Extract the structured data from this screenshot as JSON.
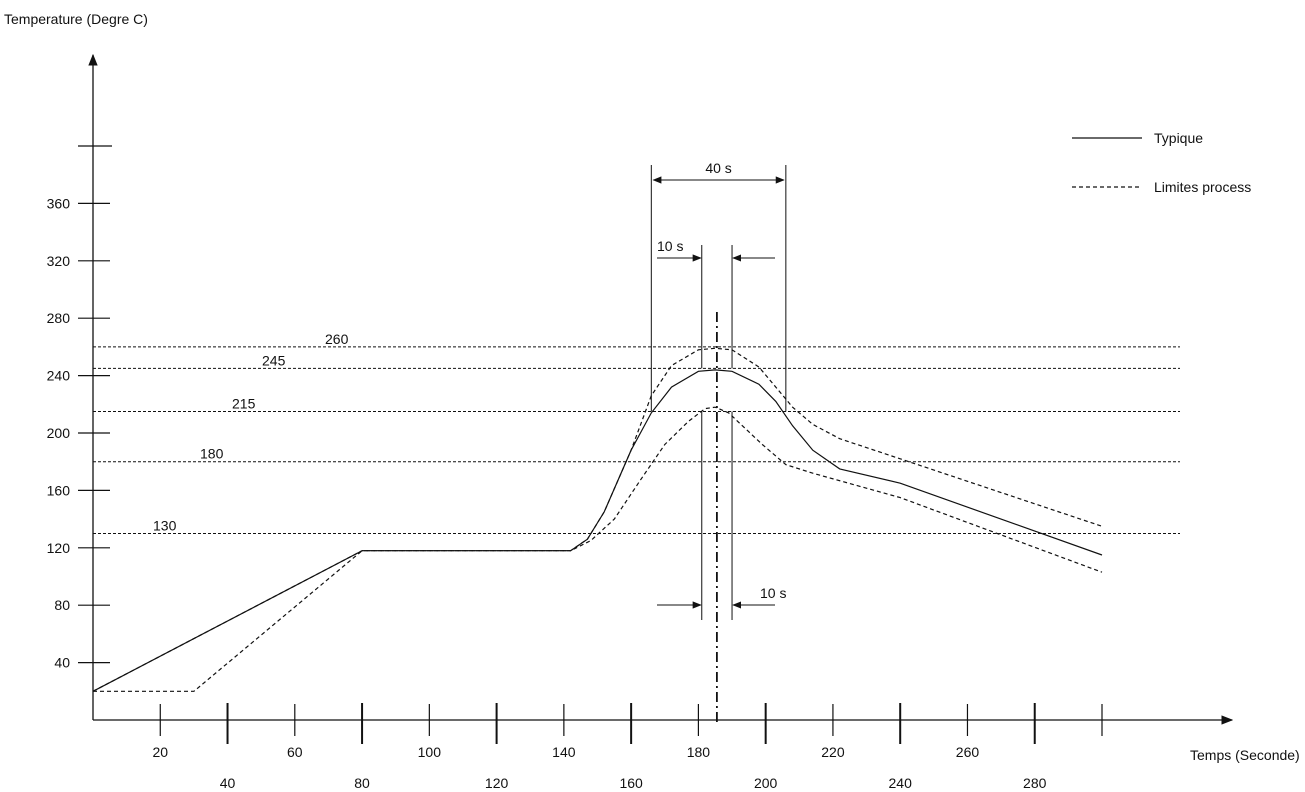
{
  "chart_data": {
    "type": "line",
    "ylabel": "Temperature (Degre C)",
    "xlabel": "Temps (Seconde)",
    "xlim": [
      0,
      300
    ],
    "ylim": [
      0,
      410
    ],
    "x_ticks": [
      20,
      40,
      60,
      80,
      100,
      120,
      140,
      160,
      180,
      200,
      220,
      240,
      260,
      280
    ],
    "y_ticks": [
      40,
      80,
      120,
      160,
      200,
      240,
      280,
      320,
      360
    ],
    "legend": {
      "placement": "top-right",
      "entries": [
        "Typique",
        "Limites process"
      ]
    },
    "series": [
      {
        "name": "Typique",
        "style": "solid",
        "points": [
          [
            0,
            20
          ],
          [
            80,
            118
          ],
          [
            142,
            118
          ],
          [
            147,
            126
          ],
          [
            152,
            145
          ],
          [
            160,
            188
          ],
          [
            166,
            214
          ],
          [
            172,
            232
          ],
          [
            180,
            243
          ],
          [
            185,
            244
          ],
          [
            190,
            243
          ],
          [
            198,
            234
          ],
          [
            203,
            222
          ],
          [
            208,
            205
          ],
          [
            214,
            188
          ],
          [
            222,
            175
          ],
          [
            240,
            165
          ],
          [
            300,
            115
          ]
        ]
      },
      {
        "name": "Limites process (upper)",
        "style": "dashed",
        "points": [
          [
            0,
            20
          ],
          [
            80,
            118
          ],
          [
            142,
            118
          ],
          [
            147,
            126
          ],
          [
            152,
            145
          ],
          [
            160,
            188
          ],
          [
            166,
            226
          ],
          [
            172,
            247
          ],
          [
            180,
            258
          ],
          [
            185,
            259
          ],
          [
            190,
            258
          ],
          [
            198,
            246
          ],
          [
            203,
            232
          ],
          [
            208,
            218
          ],
          [
            214,
            206
          ],
          [
            222,
            196
          ],
          [
            240,
            182
          ],
          [
            300,
            135
          ]
        ]
      },
      {
        "name": "Limites process (lower)",
        "style": "dashed",
        "points": [
          [
            0,
            20
          ],
          [
            30,
            20
          ],
          [
            80,
            118
          ],
          [
            142,
            118
          ],
          [
            148,
            125
          ],
          [
            155,
            140
          ],
          [
            163,
            168
          ],
          [
            170,
            192
          ],
          [
            177,
            208
          ],
          [
            182,
            217
          ],
          [
            185,
            218
          ],
          [
            189,
            214
          ],
          [
            194,
            203
          ],
          [
            199,
            192
          ],
          [
            206,
            178
          ],
          [
            214,
            172
          ],
          [
            240,
            155
          ],
          [
            300,
            103
          ]
        ]
      }
    ],
    "reference_lines": [
      {
        "y": 260,
        "label": "260"
      },
      {
        "y": 245,
        "label": "245"
      },
      {
        "y": 215,
        "label": "215"
      },
      {
        "y": 180,
        "label": "180"
      },
      {
        "y": 130,
        "label": "130"
      }
    ],
    "annotations": [
      {
        "text": "40 s",
        "from_x": 166,
        "to_x": 206
      },
      {
        "text": "10 s",
        "at_x": [
          181,
          190
        ],
        "position": "top"
      },
      {
        "text": "10 s",
        "at_x": [
          181,
          190
        ],
        "position": "bottom"
      }
    ]
  }
}
